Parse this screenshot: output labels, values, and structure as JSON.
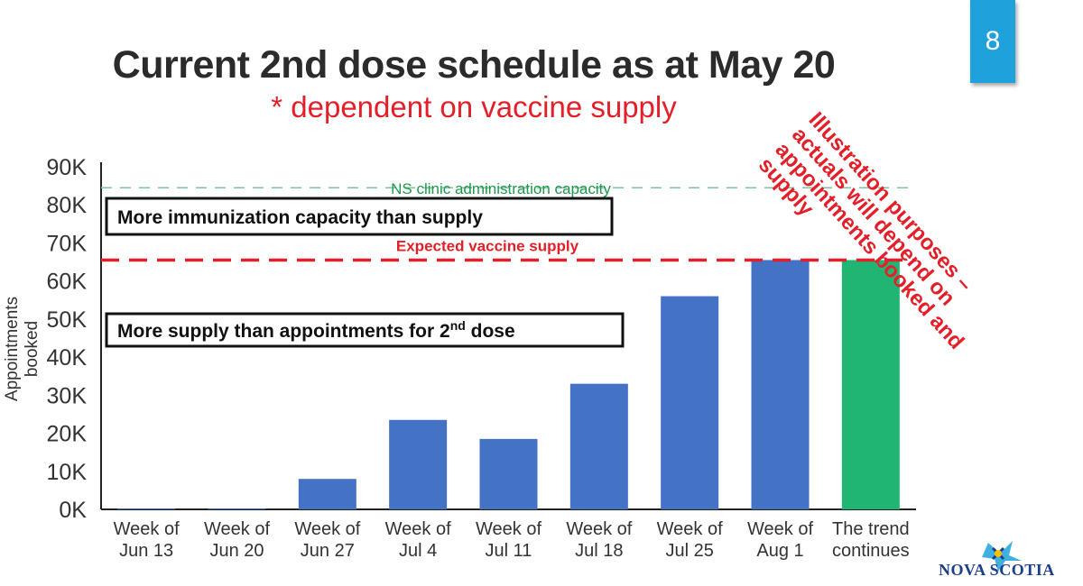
{
  "slide": {
    "title": "Current 2nd dose schedule as at May 20",
    "subtitle": "* dependent on vaccine supply",
    "page_number": "8",
    "illustration_note": [
      "Illustration purposes –",
      "actuals will depend on",
      "appointments booked and",
      "supply"
    ],
    "logo_text": "NOVA SCOTIA"
  },
  "colors": {
    "bar": "#4472c4",
    "bar_highlight": "#21b573",
    "capacity_line": "#7fc49c",
    "supply_line": "#e3202a",
    "accent": "#1fa2db"
  },
  "chart_data": {
    "type": "bar",
    "ylabel": "Appointments booked",
    "ylim": [
      0,
      90000
    ],
    "yticks": [
      0,
      10000,
      20000,
      30000,
      40000,
      50000,
      60000,
      70000,
      80000,
      90000
    ],
    "ytick_labels": [
      "0K",
      "10K",
      "20K",
      "30K",
      "40K",
      "50K",
      "60K",
      "70K",
      "80K",
      "90K"
    ],
    "categories": [
      [
        "Week of",
        "Jun 13"
      ],
      [
        "Week of",
        "Jun 20"
      ],
      [
        "Week of",
        "Jun 27"
      ],
      [
        "Week of",
        "Jul 4"
      ],
      [
        "Week of",
        "Jul 11"
      ],
      [
        "Week of",
        "Jul 18"
      ],
      [
        "Week of",
        "Jul 25"
      ],
      [
        "Week of",
        "Aug 1"
      ],
      [
        "The trend",
        "continues"
      ]
    ],
    "values": [
      200,
      200,
      8000,
      23500,
      18500,
      33000,
      56000,
      65500,
      65500
    ],
    "highlight_index": 8,
    "reference_lines": [
      {
        "label": "NS clinic administration capacity",
        "value": 84500,
        "style": "dashed-thin"
      },
      {
        "label": "Expected vaccine supply",
        "value": 65500,
        "style": "dashed-thick"
      }
    ],
    "annotation_boxes": [
      {
        "text": "More immunization capacity than supply",
        "sup": ""
      },
      {
        "text": "More supply than appointments for 2",
        "sup": "nd",
        "suffix": " dose"
      }
    ]
  }
}
